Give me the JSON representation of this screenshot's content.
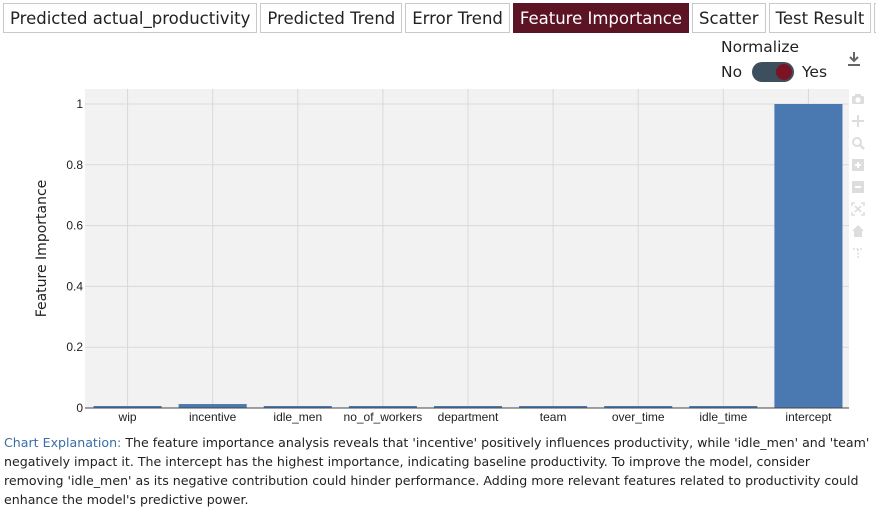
{
  "tabs": [
    {
      "label": "Predicted actual_productivity",
      "active": false
    },
    {
      "label": "Predicted Trend",
      "active": false
    },
    {
      "label": "Error Trend",
      "active": false
    },
    {
      "label": "Feature Importance",
      "active": true
    },
    {
      "label": "Scatter",
      "active": false
    },
    {
      "label": "Test Result",
      "active": false
    }
  ],
  "tab_next_icon": "chevron-right-icon",
  "normalize": {
    "title": "Normalize",
    "off_label": "No",
    "on_label": "Yes",
    "value": true
  },
  "download_icon": "download-icon",
  "modebar_icons": [
    "camera-icon",
    "pan-icon",
    "zoom-icon",
    "zoom-in-icon",
    "zoom-out-icon",
    "autoscale-icon",
    "home-icon",
    "spike-lines-icon"
  ],
  "chart_data": {
    "type": "bar",
    "categories": [
      "wip",
      "incentive",
      "idle_men",
      "no_of_workers",
      "department",
      "team",
      "over_time",
      "idle_time",
      "intercept"
    ],
    "values": [
      0.005,
      0.013,
      0.0,
      0.003,
      0.005,
      0.003,
      0.005,
      0.006,
      1.0
    ],
    "ylabel": "Feature Importance",
    "xlabel": "",
    "ylim": [
      0,
      1
    ],
    "yticks": [
      0,
      0.2,
      0.4,
      0.6,
      0.8,
      1
    ],
    "ytick_labels": [
      "0",
      "0.2",
      "0.4",
      "0.6",
      "0.8",
      "1"
    ],
    "bar_color": "#4a78b0",
    "grid": true
  },
  "explanation": {
    "label": "Chart Explanation:",
    "text": " The feature importance analysis reveals that 'incentive' positively influences productivity, while 'idle_men' and 'team' negatively impact it. The intercept has the highest importance, indicating baseline productivity. To improve the model, consider removing 'idle_men' as its negative contribution could hinder performance. Adding more relevant features related to productivity could enhance the model's predictive power."
  }
}
